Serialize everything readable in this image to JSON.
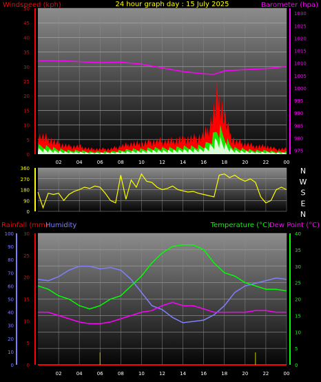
{
  "header": {
    "windspeed_label": "Windspeed (kph)",
    "title": "24 hour graph day : 15 July 2025",
    "barometer_label": "Barometer (hpa)"
  },
  "colors": {
    "background": "#000000",
    "wind_gust": "#ff0000",
    "wind_avg": "#00ff00",
    "wind_light": "#ffffff",
    "barometer": "#ff00ff",
    "direction": "#ffff00",
    "rainfall": "#ff0000",
    "humidity": "#8080ff",
    "temperature": "#00ff00",
    "dewpoint": "#ff00ff",
    "header": "#ffff00"
  },
  "chart_data": [
    {
      "type": "area",
      "x_ticks": [
        "02",
        "04",
        "06",
        "08",
        "10",
        "12",
        "14",
        "16",
        "18",
        "20",
        "22",
        "00"
      ],
      "y_left_ticks": [
        "0",
        "5",
        "10",
        "15",
        "20",
        "25",
        "30",
        "35",
        "40",
        "45",
        "50"
      ],
      "y_left_range": [
        0,
        50
      ],
      "y_right_ticks": [
        "975",
        "980",
        "985",
        "990",
        "995",
        "1000",
        "1005",
        "1010",
        "1015",
        "1020",
        "1025",
        "1030"
      ],
      "y_right_range": [
        973.5,
        1032
      ],
      "series": [
        {
          "name": "Windspeed (kph)",
          "x": [
            0,
            1,
            2,
            3,
            4,
            5,
            6,
            7,
            8,
            9,
            10,
            11,
            12,
            13,
            14,
            15,
            16,
            16.5,
            17,
            17.3,
            17.6,
            18,
            18.5,
            19,
            20,
            21,
            22,
            23,
            24
          ],
          "values": [
            7,
            6,
            4,
            3,
            3,
            2,
            2,
            2,
            3,
            4,
            4,
            5,
            5,
            5,
            6,
            6,
            7,
            10,
            16,
            22,
            20,
            15,
            8,
            5,
            4,
            3,
            3,
            2,
            2
          ]
        },
        {
          "name": "Barometer (hpa)",
          "x": [
            0,
            2,
            4,
            6,
            8,
            10,
            12,
            14,
            16,
            17,
            18,
            20,
            22,
            24
          ],
          "values": [
            1011,
            1011,
            1010.6,
            1010.2,
            1010.4,
            1009.6,
            1008.1,
            1006.6,
            1005.7,
            1005.5,
            1006.9,
            1007.4,
            1007.8,
            1008.6
          ]
        }
      ]
    },
    {
      "type": "line",
      "x_ticks": [
        "02",
        "04",
        "06",
        "08",
        "10",
        "12",
        "14",
        "16",
        "18",
        "20",
        "22",
        "00"
      ],
      "y_left_ticks": [
        "360",
        "270",
        "180",
        "90",
        "0"
      ],
      "y_left_range": [
        0,
        360
      ],
      "y_right_ticks": [
        "N",
        "W",
        "S",
        "E",
        "N"
      ],
      "series": [
        {
          "name": "Wind direction",
          "x": [
            0,
            0.5,
            1,
            1.5,
            2,
            2.5,
            3,
            3.5,
            4,
            4.5,
            5,
            5.5,
            6,
            6.5,
            7,
            7.5,
            8,
            8.5,
            9,
            9.5,
            10,
            10.5,
            11,
            11.5,
            12,
            12.5,
            13,
            13.5,
            14,
            14.5,
            15,
            15.5,
            16,
            16.5,
            17,
            17.5,
            18,
            18.5,
            19,
            19.5,
            20,
            20.5,
            21,
            21.5,
            22,
            22.5,
            23,
            23.5,
            24
          ],
          "values": [
            160,
            30,
            150,
            140,
            150,
            90,
            140,
            165,
            180,
            200,
            190,
            210,
            200,
            150,
            90,
            70,
            300,
            100,
            260,
            200,
            310,
            250,
            240,
            200,
            180,
            190,
            210,
            180,
            170,
            160,
            165,
            150,
            140,
            130,
            120,
            300,
            310,
            280,
            300,
            270,
            250,
            270,
            240,
            120,
            70,
            90,
            180,
            200,
            180
          ]
        }
      ]
    },
    {
      "type": "line",
      "x_ticks": [
        "02",
        "04",
        "06",
        "08",
        "10",
        "12",
        "14",
        "16",
        "18",
        "20",
        "22",
        "00"
      ],
      "rain_ticks": [
        "0",
        "5",
        "10",
        "15",
        "20",
        "25",
        "30"
      ],
      "rain_range": [
        0,
        30
      ],
      "humidity_ticks": [
        "0",
        "10",
        "20",
        "30",
        "40",
        "50",
        "60",
        "70",
        "80",
        "90",
        "100"
      ],
      "humidity_range": [
        0,
        100
      ],
      "temp_ticks": [
        "0",
        "5",
        "10",
        "15",
        "20",
        "25",
        "30",
        "35",
        "40"
      ],
      "temp_range": [
        0,
        40
      ],
      "series": [
        {
          "name": "Rainfall (mm)",
          "x": [
            0,
            24
          ],
          "values": [
            0,
            0
          ]
        },
        {
          "name": "Humidity",
          "x": [
            0,
            1,
            2,
            3,
            4,
            5,
            6,
            7,
            8,
            9,
            10,
            11,
            12,
            13,
            14,
            15,
            16,
            17,
            18,
            19,
            20,
            21,
            22,
            23,
            24
          ],
          "values": [
            65,
            64,
            67,
            72,
            75,
            75,
            73,
            74,
            72,
            65,
            55,
            45,
            42,
            36,
            32,
            33,
            34,
            38,
            45,
            55,
            60,
            62,
            64,
            66,
            65
          ]
        },
        {
          "name": "Temperature (°C)",
          "x": [
            0,
            1,
            2,
            3,
            4,
            5,
            6,
            7,
            8,
            9,
            10,
            11,
            12,
            13,
            14,
            15,
            16,
            17,
            18,
            19,
            20,
            21,
            22,
            23,
            24
          ],
          "values": [
            24,
            23,
            21,
            20,
            18,
            17,
            18,
            20,
            21,
            24,
            27,
            31,
            34,
            36,
            36.5,
            36.5,
            35,
            31,
            28,
            27,
            25,
            24,
            23,
            23,
            22.5
          ]
        },
        {
          "name": "Dew Point (°C)",
          "x": [
            0,
            1,
            2,
            3,
            4,
            5,
            6,
            7,
            8,
            9,
            10,
            11,
            12,
            13,
            14,
            15,
            16,
            17,
            18,
            19,
            20,
            21,
            22,
            23,
            24
          ],
          "values": [
            16,
            16,
            15,
            14,
            13,
            12.5,
            12.5,
            13,
            14,
            15,
            16,
            16.5,
            18,
            19,
            18,
            18,
            17,
            16,
            16,
            16,
            16,
            16.5,
            16.5,
            16,
            16
          ]
        }
      ]
    }
  ],
  "bottom_header": {
    "rainfall_label": "Rainfall (mm)",
    "humidity_label": "Humidity",
    "temperature_label": "Temperature (°C)",
    "dewpoint_label": "Dew Point (°C)"
  }
}
